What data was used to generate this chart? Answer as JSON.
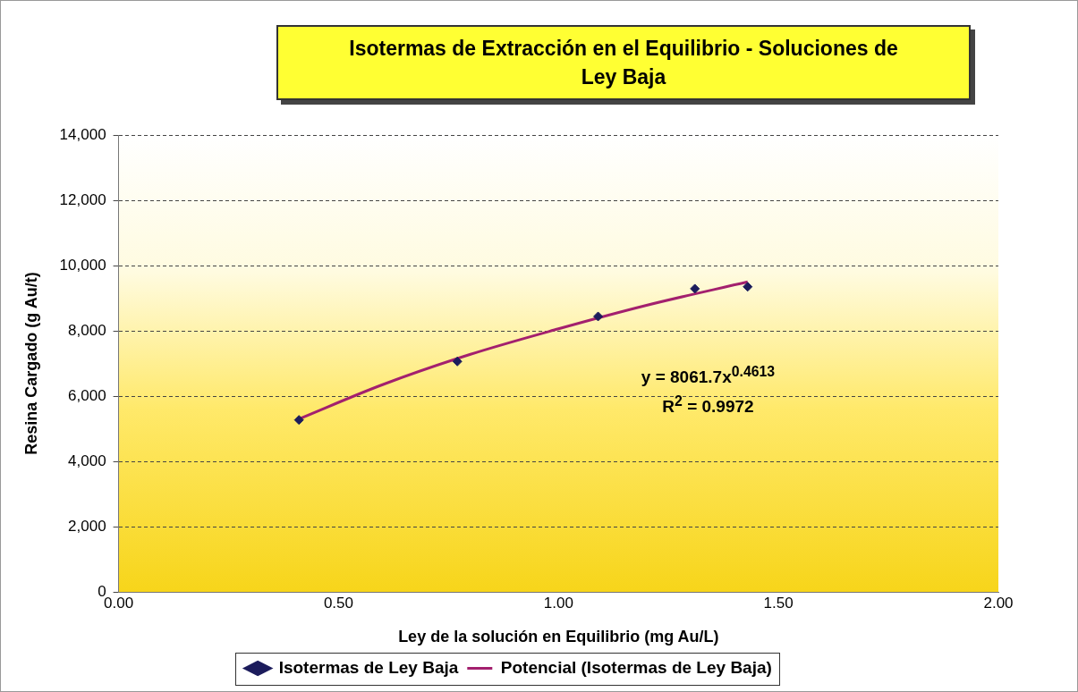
{
  "chart_data": {
    "type": "scatter",
    "title": "Isotermas de Extracción en el Equilibrio - Soluciones de Ley Baja",
    "xlabel": "Ley de la solución en Equilibrio (mg Au/L)",
    "ylabel": "Resina Cargado (g Au/t)",
    "series": [
      {
        "name": "Isotermas de Ley Baja",
        "color": "#1c1c5c",
        "marker": "diamond",
        "x": [
          0.41,
          0.77,
          1.09,
          1.31,
          1.43
        ],
        "values": [
          5270,
          7060,
          8440,
          9290,
          9350
        ]
      },
      {
        "name": "Potencial (Isotermas de Ley Baja)",
        "type": "line",
        "color": "#a3206e",
        "marker": "none",
        "x": [
          0.41,
          0.6,
          0.8,
          1.0,
          1.2,
          1.43
        ],
        "values": [
          5300,
          6350,
          7280,
          8060,
          8780,
          9500
        ]
      }
    ],
    "xlim": [
      0,
      2
    ],
    "xticks": [
      {
        "value": 0,
        "label": "0.00"
      },
      {
        "value": 0.5,
        "label": "0.50"
      },
      {
        "value": 1,
        "label": "1.00"
      },
      {
        "value": 1.5,
        "label": "1.50"
      },
      {
        "value": 2,
        "label": "2.00"
      }
    ],
    "ylim": [
      0,
      14000
    ],
    "yticks": [
      {
        "value": 0,
        "label": "0"
      },
      {
        "value": 2000,
        "label": "2,000"
      },
      {
        "value": 4000,
        "label": "4,000"
      },
      {
        "value": 6000,
        "label": "6,000"
      },
      {
        "value": 8000,
        "label": "8,000"
      },
      {
        "value": 10000,
        "label": "10,000"
      },
      {
        "value": 12000,
        "label": "12,000"
      },
      {
        "value": 14000,
        "label": "14,000"
      }
    ],
    "grid": "y",
    "legend": "bottom",
    "line_style": "solid",
    "annotations": [
      "y = 8061.7x$^{0.4613}$",
      "R$^{2}$ = 0.9972"
    ]
  }
}
